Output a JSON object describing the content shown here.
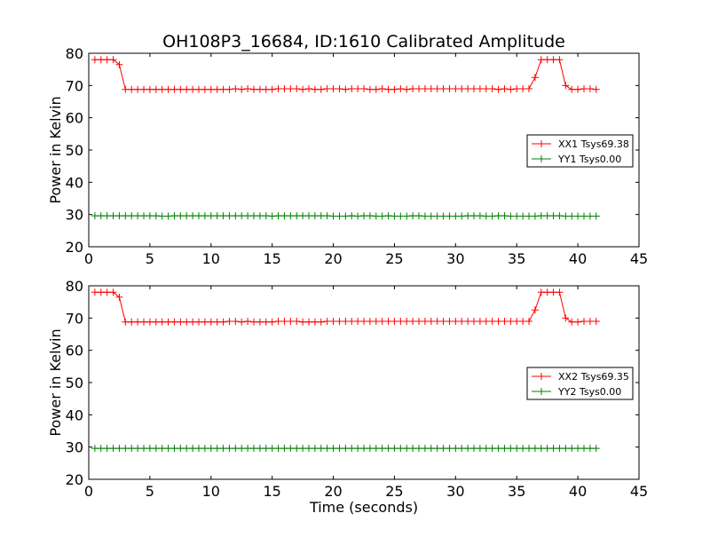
{
  "title": "OH108P3_16684, ID:1610 Calibrated Amplitude",
  "colors": {
    "xx": "#ff0000",
    "yy": "#008000"
  },
  "chart_data": [
    {
      "type": "line",
      "title": "OH108P3_16684, ID:1610 Calibrated Amplitude",
      "xlabel": "",
      "ylabel": "Power in Kelvin",
      "xlim": [
        0,
        45
      ],
      "ylim": [
        20,
        80
      ],
      "xticks": [
        "0",
        "5",
        "10",
        "15",
        "20",
        "25",
        "30",
        "35",
        "40",
        "45"
      ],
      "yticks": [
        "20",
        "30",
        "40",
        "50",
        "60",
        "70",
        "80"
      ],
      "grid": false,
      "legend": "center-right",
      "series": [
        {
          "name": "XX1 Tsys69.38",
          "color": "#ff0000",
          "x": [
            0.5,
            1.0,
            1.5,
            2.0,
            2.5,
            3.0,
            3.5,
            4.0,
            4.5,
            5.0,
            5.5,
            6.0,
            6.5,
            7.0,
            7.5,
            8.0,
            8.5,
            9.0,
            9.5,
            10.0,
            10.5,
            11.0,
            11.5,
            12.0,
            12.5,
            13.0,
            13.5,
            14.0,
            14.5,
            15.0,
            15.5,
            16.0,
            16.5,
            17.0,
            17.5,
            18.0,
            18.5,
            19.0,
            19.5,
            20.0,
            20.5,
            21.0,
            21.5,
            22.0,
            22.5,
            23.0,
            23.5,
            24.0,
            24.5,
            25.0,
            25.5,
            26.0,
            26.5,
            27.0,
            27.5,
            28.0,
            28.5,
            29.0,
            29.5,
            30.0,
            30.5,
            31.0,
            31.5,
            32.0,
            32.5,
            33.0,
            33.5,
            34.0,
            34.5,
            35.0,
            35.5,
            36.0,
            36.5,
            37.0,
            37.5,
            38.0,
            38.5,
            39.0,
            39.5,
            40.0,
            40.5,
            41.0,
            41.5
          ],
          "y": [
            78,
            78,
            78,
            78,
            76.5,
            68.8,
            68.8,
            68.8,
            68.8,
            68.8,
            68.8,
            68.8,
            68.8,
            68.8,
            68.8,
            68.8,
            68.8,
            68.8,
            68.8,
            68.8,
            68.8,
            68.8,
            68.8,
            69,
            68.8,
            69,
            68.8,
            68.8,
            68.8,
            68.8,
            69,
            69,
            69,
            69,
            68.8,
            69,
            68.8,
            68.8,
            69,
            69,
            69,
            68.8,
            69,
            69,
            69,
            68.8,
            68.8,
            69,
            68.8,
            68.8,
            69,
            68.8,
            69,
            69,
            69,
            69,
            69,
            69,
            69,
            69,
            69,
            69,
            69,
            69,
            69,
            69,
            68.8,
            69,
            68.8,
            69,
            69,
            69,
            72.5,
            78,
            78,
            78,
            78,
            70,
            68.8,
            68.8,
            69,
            69,
            68.8
          ]
        },
        {
          "name": "YY1 Tsys0.00",
          "color": "#008000",
          "x": [
            0.5,
            1.0,
            1.5,
            2.0,
            2.5,
            3.0,
            3.5,
            4.0,
            4.5,
            5.0,
            5.5,
            6.0,
            6.5,
            7.0,
            7.5,
            8.0,
            8.5,
            9.0,
            9.5,
            10.0,
            10.5,
            11.0,
            11.5,
            12.0,
            12.5,
            13.0,
            13.5,
            14.0,
            14.5,
            15.0,
            15.5,
            16.0,
            16.5,
            17.0,
            17.5,
            18.0,
            18.5,
            19.0,
            19.5,
            20.0,
            20.5,
            21.0,
            21.5,
            22.0,
            22.5,
            23.0,
            23.5,
            24.0,
            24.5,
            25.0,
            25.5,
            26.0,
            26.5,
            27.0,
            27.5,
            28.0,
            28.5,
            29.0,
            29.5,
            30.0,
            30.5,
            31.0,
            31.5,
            32.0,
            32.5,
            33.0,
            33.5,
            34.0,
            34.5,
            35.0,
            35.5,
            36.0,
            36.5,
            37.0,
            37.5,
            38.0,
            38.5,
            39.0,
            39.5,
            40.0,
            40.5,
            41.0,
            41.5
          ],
          "y": [
            29.6,
            29.6,
            29.6,
            29.6,
            29.6,
            29.6,
            29.6,
            29.6,
            29.6,
            29.6,
            29.6,
            29.5,
            29.5,
            29.6,
            29.6,
            29.6,
            29.6,
            29.6,
            29.6,
            29.6,
            29.6,
            29.6,
            29.6,
            29.6,
            29.6,
            29.6,
            29.6,
            29.6,
            29.6,
            29.5,
            29.6,
            29.6,
            29.6,
            29.6,
            29.6,
            29.6,
            29.6,
            29.6,
            29.6,
            29.5,
            29.5,
            29.5,
            29.6,
            29.5,
            29.6,
            29.6,
            29.5,
            29.5,
            29.6,
            29.5,
            29.5,
            29.5,
            29.6,
            29.6,
            29.5,
            29.5,
            29.5,
            29.5,
            29.5,
            29.5,
            29.5,
            29.6,
            29.6,
            29.6,
            29.5,
            29.5,
            29.6,
            29.6,
            29.5,
            29.5,
            29.5,
            29.5,
            29.5,
            29.6,
            29.6,
            29.6,
            29.6,
            29.5,
            29.5,
            29.5,
            29.5,
            29.5,
            29.5
          ]
        }
      ]
    },
    {
      "type": "line",
      "title": "",
      "xlabel": "Time (seconds)",
      "ylabel": "Power in Kelvin",
      "xlim": [
        0,
        45
      ],
      "ylim": [
        20,
        80
      ],
      "xticks": [
        "0",
        "5",
        "10",
        "15",
        "20",
        "25",
        "30",
        "35",
        "40",
        "45"
      ],
      "yticks": [
        "20",
        "30",
        "40",
        "50",
        "60",
        "70",
        "80"
      ],
      "grid": false,
      "legend": "center-right",
      "series": [
        {
          "name": "XX2 Tsys69.35",
          "color": "#ff0000",
          "x": [
            0.5,
            1.0,
            1.5,
            2.0,
            2.5,
            3.0,
            3.5,
            4.0,
            4.5,
            5.0,
            5.5,
            6.0,
            6.5,
            7.0,
            7.5,
            8.0,
            8.5,
            9.0,
            9.5,
            10.0,
            10.5,
            11.0,
            11.5,
            12.0,
            12.5,
            13.0,
            13.5,
            14.0,
            14.5,
            15.0,
            15.5,
            16.0,
            16.5,
            17.0,
            17.5,
            18.0,
            18.5,
            19.0,
            19.5,
            20.0,
            20.5,
            21.0,
            21.5,
            22.0,
            22.5,
            23.0,
            23.5,
            24.0,
            24.5,
            25.0,
            25.5,
            26.0,
            26.5,
            27.0,
            27.5,
            28.0,
            28.5,
            29.0,
            29.5,
            30.0,
            30.5,
            31.0,
            31.5,
            32.0,
            32.5,
            33.0,
            33.5,
            34.0,
            34.5,
            35.0,
            35.5,
            36.0,
            36.5,
            37.0,
            37.5,
            38.0,
            38.5,
            39.0,
            39.5,
            40.0,
            40.5,
            41.0,
            41.5
          ],
          "y": [
            78,
            78,
            78,
            78,
            76.5,
            68.8,
            68.8,
            68.8,
            68.8,
            68.8,
            68.8,
            68.8,
            68.8,
            68.8,
            68.8,
            68.8,
            68.8,
            68.8,
            68.8,
            68.8,
            68.8,
            68.8,
            69,
            69,
            68.8,
            69,
            68.8,
            68.8,
            68.8,
            68.8,
            69,
            69,
            69,
            69,
            68.8,
            68.8,
            68.8,
            68.8,
            69,
            69,
            69,
            69,
            69,
            69,
            69,
            69,
            69,
            69,
            69,
            69,
            69,
            69,
            69,
            69,
            69,
            69,
            69,
            69,
            69,
            69,
            69,
            69,
            69,
            69,
            69,
            69,
            69,
            69,
            69,
            69,
            69,
            69,
            72.5,
            78,
            78,
            78,
            78,
            70,
            68.8,
            68.8,
            69,
            69,
            69
          ]
        },
        {
          "name": "YY2 Tsys0.00",
          "color": "#008000",
          "x": [
            0.5,
            1.0,
            1.5,
            2.0,
            2.5,
            3.0,
            3.5,
            4.0,
            4.5,
            5.0,
            5.5,
            6.0,
            6.5,
            7.0,
            7.5,
            8.0,
            8.5,
            9.0,
            9.5,
            10.0,
            10.5,
            11.0,
            11.5,
            12.0,
            12.5,
            13.0,
            13.5,
            14.0,
            14.5,
            15.0,
            15.5,
            16.0,
            16.5,
            17.0,
            17.5,
            18.0,
            18.5,
            19.0,
            19.5,
            20.0,
            20.5,
            21.0,
            21.5,
            22.0,
            22.5,
            23.0,
            23.5,
            24.0,
            24.5,
            25.0,
            25.5,
            26.0,
            26.5,
            27.0,
            27.5,
            28.0,
            28.5,
            29.0,
            29.5,
            30.0,
            30.5,
            31.0,
            31.5,
            32.0,
            32.5,
            33.0,
            33.5,
            34.0,
            34.5,
            35.0,
            35.5,
            36.0,
            36.5,
            37.0,
            37.5,
            38.0,
            38.5,
            39.0,
            39.5,
            40.0,
            40.5,
            41.0,
            41.5
          ],
          "y": [
            29.6,
            29.6,
            29.6,
            29.6,
            29.6,
            29.6,
            29.6,
            29.6,
            29.6,
            29.6,
            29.6,
            29.6,
            29.6,
            29.6,
            29.6,
            29.6,
            29.6,
            29.6,
            29.6,
            29.6,
            29.6,
            29.6,
            29.6,
            29.6,
            29.6,
            29.6,
            29.6,
            29.6,
            29.6,
            29.6,
            29.6,
            29.6,
            29.6,
            29.6,
            29.6,
            29.6,
            29.6,
            29.6,
            29.6,
            29.6,
            29.6,
            29.6,
            29.6,
            29.6,
            29.6,
            29.6,
            29.6,
            29.6,
            29.6,
            29.6,
            29.6,
            29.6,
            29.6,
            29.6,
            29.6,
            29.6,
            29.6,
            29.6,
            29.6,
            29.6,
            29.6,
            29.6,
            29.6,
            29.6,
            29.6,
            29.6,
            29.6,
            29.6,
            29.6,
            29.6,
            29.6,
            29.6,
            29.6,
            29.6,
            29.6,
            29.6,
            29.6,
            29.6,
            29.6,
            29.6,
            29.6,
            29.6,
            29.6
          ]
        }
      ]
    }
  ]
}
